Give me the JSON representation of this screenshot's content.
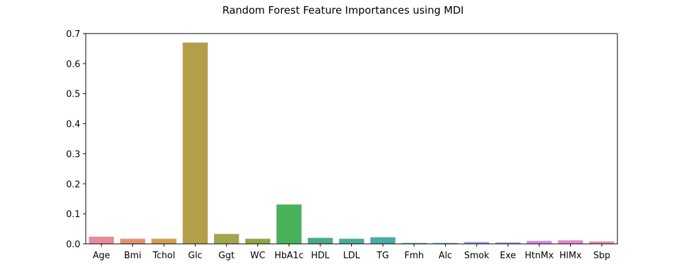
{
  "chart_data": {
    "type": "bar",
    "title": "Random Forest Feature Importances using MDI",
    "xlabel": "",
    "ylabel": "",
    "categories": [
      "Age",
      "Bmi",
      "Tchol",
      "Glc",
      "Ggt",
      "WC",
      "HbA1c",
      "HDL",
      "LDL",
      "TG",
      "Fmh",
      "Alc",
      "Smok",
      "Exe",
      "HtnMx",
      "HlMx",
      "Sbp"
    ],
    "values": [
      0.024,
      0.017,
      0.017,
      0.67,
      0.033,
      0.017,
      0.131,
      0.02,
      0.017,
      0.022,
      0.003,
      0.003,
      0.006,
      0.005,
      0.01,
      0.012,
      0.008
    ],
    "colors": [
      "#e8899c",
      "#e5906f",
      "#d39e50",
      "#b39e4a",
      "#9fa64e",
      "#8ea746",
      "#4ab05a",
      "#4aaa84",
      "#48ab98",
      "#49aaaa",
      "#4aa8bc",
      "#52a3cd",
      "#8d9ce8",
      "#a998e8",
      "#d58ae6",
      "#e487cf",
      "#e88ab4"
    ],
    "ylim": [
      0,
      0.7
    ],
    "yticks": [
      0.0,
      0.1,
      0.2,
      0.3,
      0.4,
      0.5,
      0.6,
      0.7
    ],
    "grid": false,
    "legend": "none"
  }
}
